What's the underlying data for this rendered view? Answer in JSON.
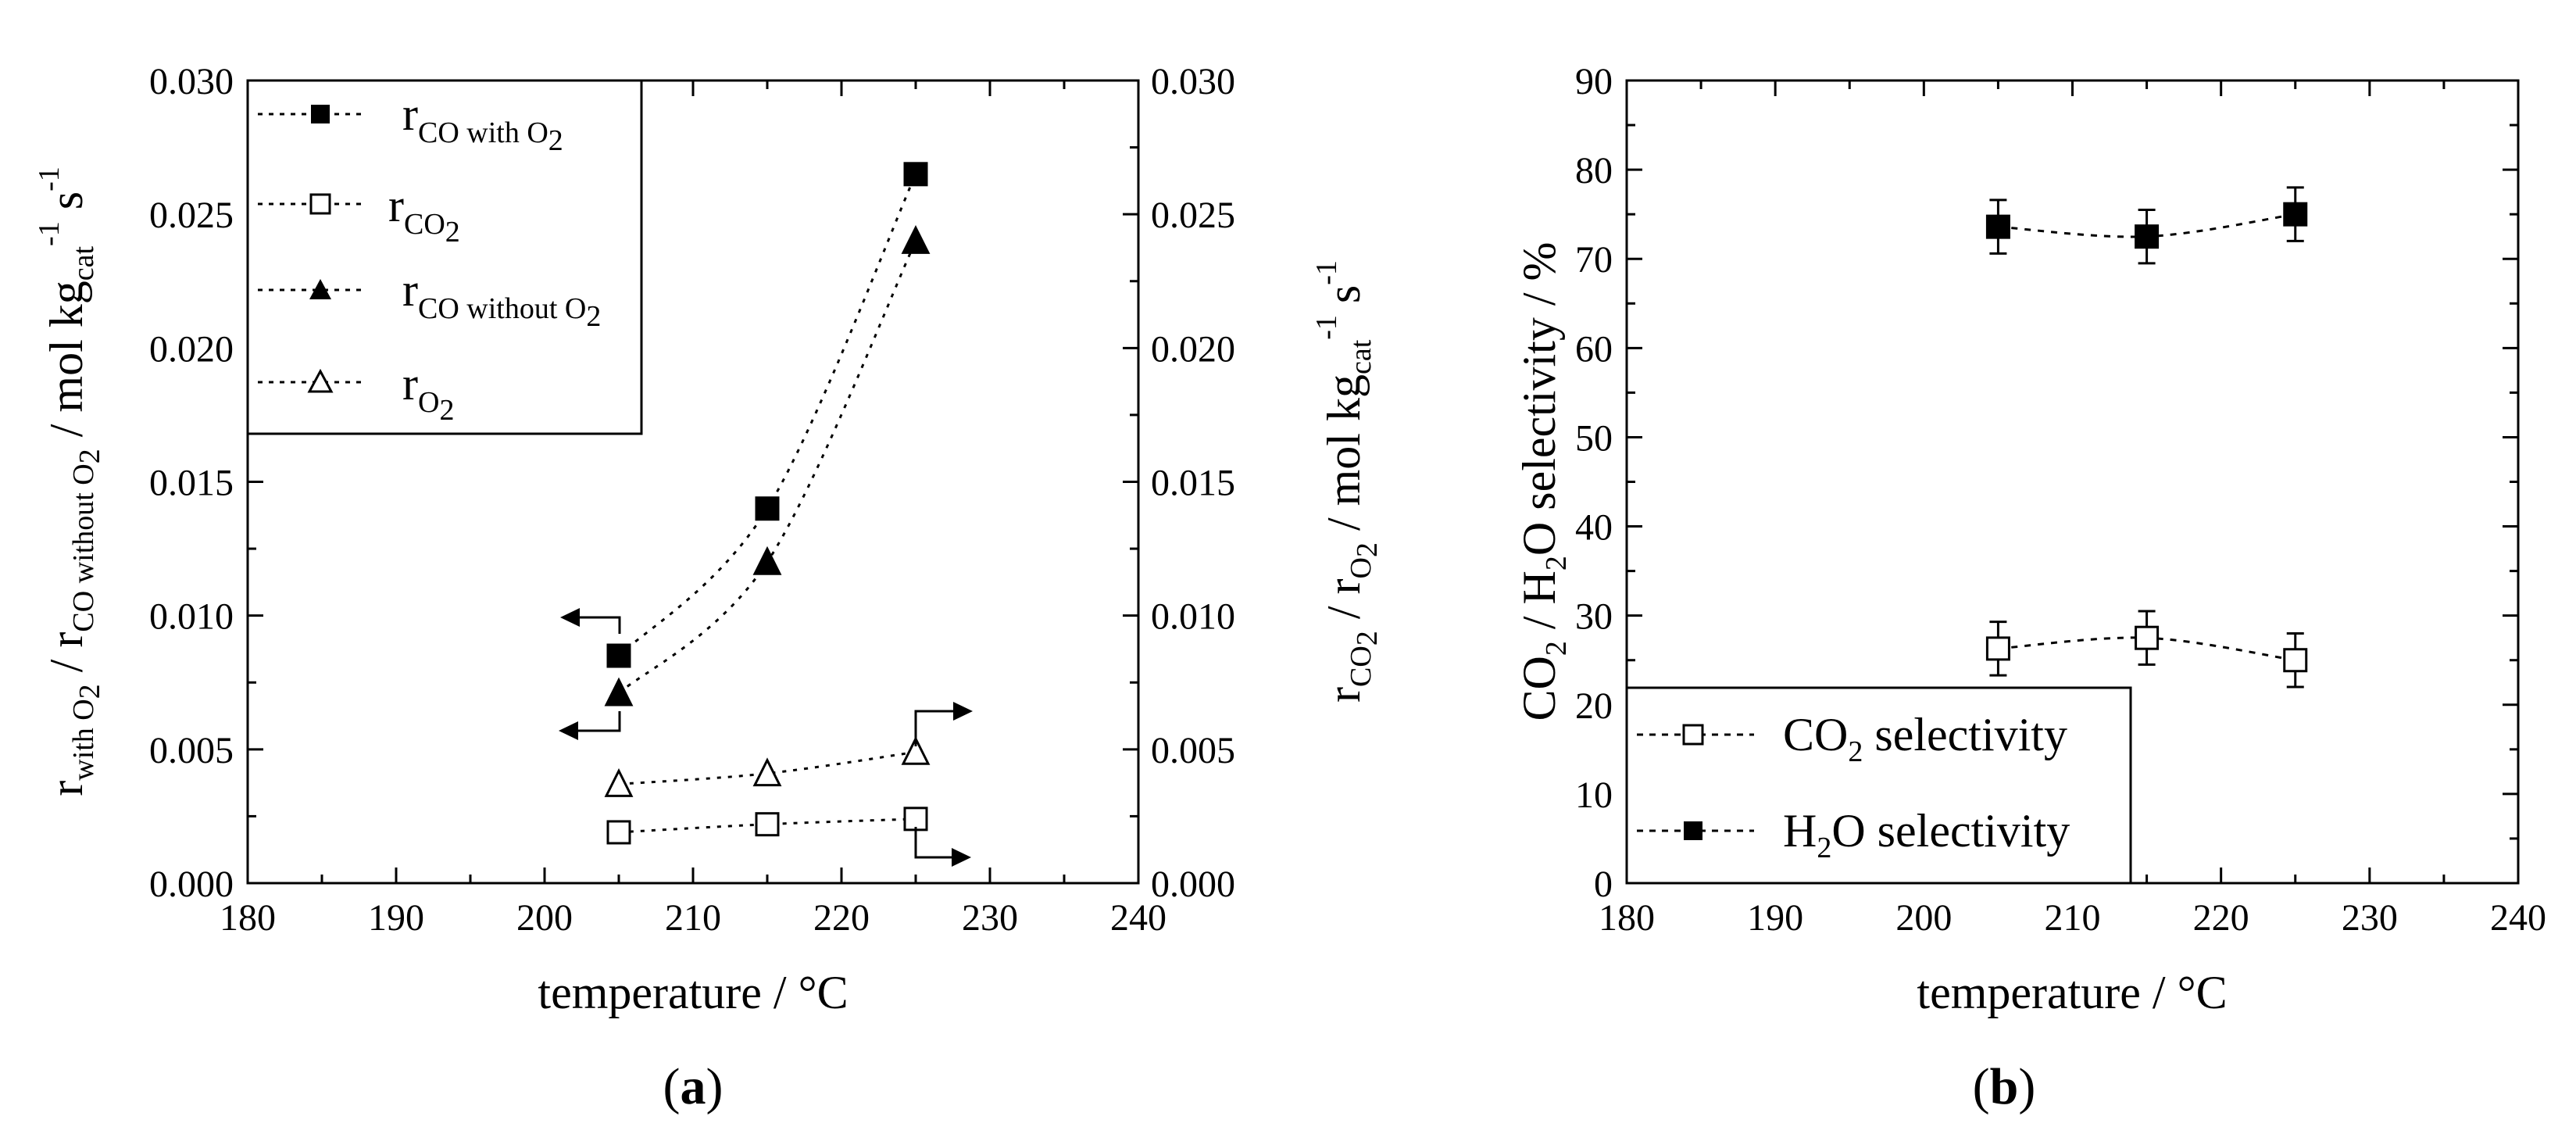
{
  "chart_data": [
    {
      "panel": "a",
      "panel_label": "(a)",
      "type": "scatter",
      "xlabel": "temperature / °C",
      "ylabel_left": "r_CO with O2 / r_CO without O2 / mol kg_cat^-1 s^-1",
      "ylabel_right": "r_CO2 / r_O2 / mol kg_cat^-1 s^-1",
      "xlim": [
        180,
        240
      ],
      "ylim_left": [
        0.0,
        0.03
      ],
      "ylim_right": [
        0.0,
        0.03
      ],
      "xticks": [
        "180",
        "190",
        "200",
        "210",
        "220",
        "230",
        "240"
      ],
      "yticks_left": [
        "0.000",
        "0.005",
        "0.010",
        "0.015",
        "0.020",
        "0.025",
        "0.030"
      ],
      "yticks_right": [
        "0.000",
        "0.005",
        "0.010",
        "0.015",
        "0.020",
        "0.025",
        "0.030"
      ],
      "series": [
        {
          "name": "r_CO with O2",
          "marker": "filled-square",
          "axis": "left",
          "x": [
            205,
            215,
            225
          ],
          "y": [
            0.0085,
            0.014,
            0.0265
          ]
        },
        {
          "name": "r_CO2",
          "marker": "open-square",
          "axis": "right",
          "x": [
            205,
            215,
            225
          ],
          "y": [
            0.0019,
            0.0022,
            0.0024
          ]
        },
        {
          "name": "r_CO without O2",
          "marker": "filled-triangle",
          "axis": "left",
          "x": [
            205,
            215,
            225
          ],
          "y": [
            0.0071,
            0.012,
            0.024
          ]
        },
        {
          "name": "r_O2",
          "marker": "open-triangle",
          "axis": "right",
          "x": [
            205,
            215,
            225
          ],
          "y": [
            0.0037,
            0.0041,
            0.0049
          ]
        }
      ],
      "legend_placement": "top-left"
    },
    {
      "panel": "b",
      "panel_label": "(b)",
      "type": "scatter",
      "xlabel": "temperature / °C",
      "ylabel": "CO2 / H2O selectivity / %",
      "xlim": [
        180,
        240
      ],
      "ylim": [
        0,
        90
      ],
      "xticks": [
        "180",
        "190",
        "200",
        "210",
        "220",
        "230",
        "240"
      ],
      "yticks": [
        "0",
        "10",
        "20",
        "30",
        "40",
        "50",
        "60",
        "70",
        "80",
        "90"
      ],
      "series": [
        {
          "name": "CO2 selectivity",
          "marker": "open-square",
          "x": [
            205,
            215,
            225
          ],
          "y": [
            26.3,
            27.5,
            25.0
          ],
          "err": [
            3.0,
            3.0,
            3.0
          ]
        },
        {
          "name": "H2O selectivity",
          "marker": "filled-square",
          "x": [
            205,
            215,
            225
          ],
          "y": [
            73.6,
            72.5,
            75.0
          ],
          "err": [
            3.0,
            3.0,
            3.0
          ]
        }
      ],
      "legend_placement": "bottom-left"
    }
  ],
  "text": {
    "a_xlabel": "temperature / °C",
    "b_xlabel": "temperature / °C",
    "a_panel": "(a)",
    "b_panel": "(b)",
    "r": "r",
    "co_with": "CO with O",
    "co_without": "CO without O",
    "co": "CO",
    "two": "2",
    "o": "O",
    "with_o": "with O",
    "without_o": "without O",
    "slash": " / ",
    "unit_mol": " / mol kg",
    "cat": "cat",
    "minus1": "-1",
    "s": " s",
    "b_co": "CO",
    "b_h": "H",
    "b_o_sel": "O selectivity / %",
    "b_sel": " selectivity",
    "b_o_selectivity": "O selectivity"
  }
}
